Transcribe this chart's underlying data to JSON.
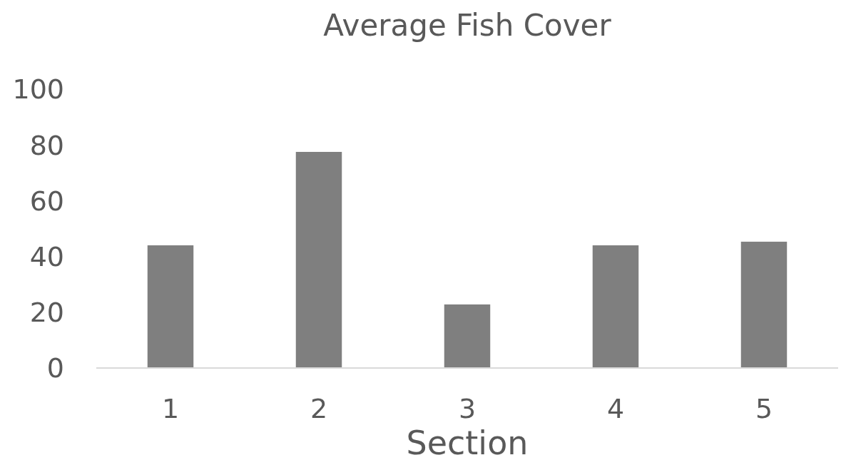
{
  "chart_data": {
    "type": "bar",
    "title": "Average Fish Cover",
    "xlabel": "Section",
    "categories": [
      "1",
      "2",
      "3",
      "4",
      "5"
    ],
    "values": [
      44,
      77.5,
      22.8,
      44,
      45.3
    ],
    "color": "#7f7f7f",
    "ylim": [
      0,
      100
    ],
    "yticks": [
      0,
      20,
      40,
      60,
      80,
      100
    ],
    "grid": false
  }
}
